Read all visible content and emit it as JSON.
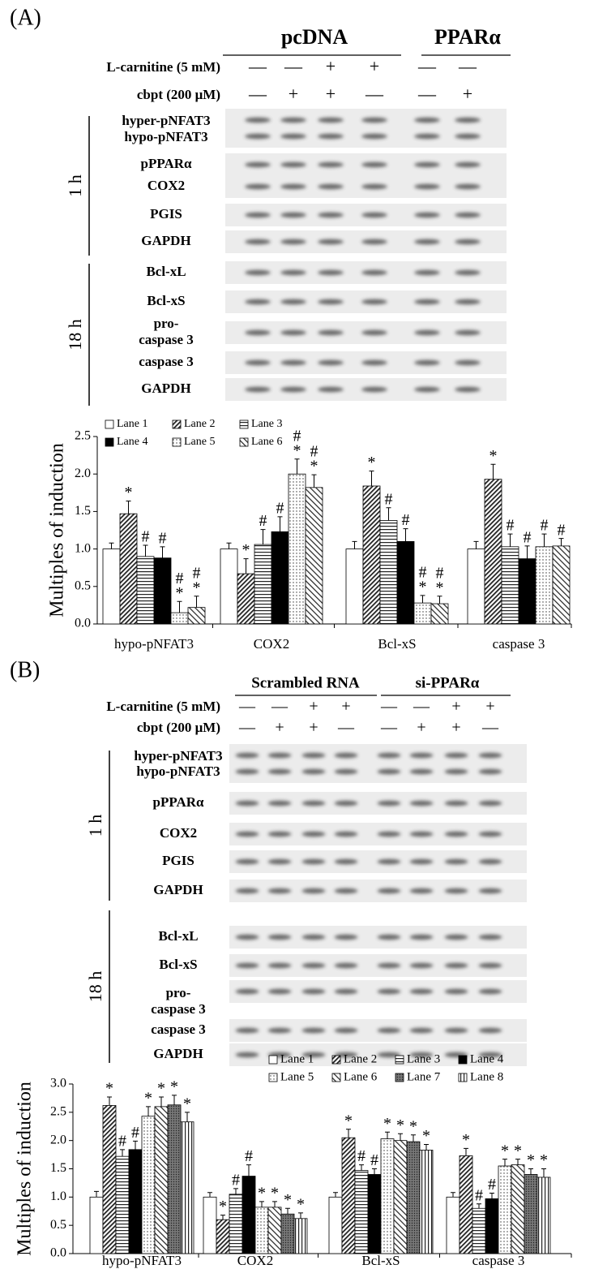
{
  "panels": [
    {
      "label": "(A)",
      "groups": [
        {
          "label": "pcDNA"
        },
        {
          "label": "PPARα"
        }
      ],
      "treatments": [
        {
          "label": "L-carnitine (5 mM)",
          "signs": [
            "—",
            "—",
            "+",
            "+",
            "—",
            "—"
          ]
        },
        {
          "label": "cbpt (200 μM)",
          "signs": [
            "—",
            "+",
            "+",
            "—",
            "—",
            "+"
          ]
        }
      ],
      "time_points": [
        {
          "label": "1 h",
          "rows": [
            {
              "labels": [
                "hyper-pNFAT3",
                "hypo-pNFAT3"
              ]
            },
            {
              "labels": [
                "pPPARα"
              ]
            },
            {
              "labels": [
                "COX2"
              ]
            },
            {
              "labels": [
                "PGIS"
              ]
            },
            {
              "labels": [
                "GAPDH"
              ]
            }
          ]
        },
        {
          "label": "18 h",
          "rows": [
            {
              "labels": [
                "Bcl-xL"
              ]
            },
            {
              "labels": [
                "Bcl-xS"
              ]
            },
            {
              "labels": [
                "pro-",
                "caspase 3"
              ]
            },
            {
              "labels": [
                "caspase 3"
              ]
            },
            {
              "labels": [
                "GAPDH"
              ]
            }
          ]
        }
      ]
    },
    {
      "label": "(B)",
      "groups": [
        {
          "label": "Scrambled RNA"
        },
        {
          "label": "si-PPARα"
        }
      ],
      "treatments": [
        {
          "label": "L-carnitine (5 mM)",
          "signs": [
            "—",
            "—",
            "+",
            "+",
            "—",
            "—",
            "+",
            "+"
          ]
        },
        {
          "label": "cbpt (200 μM)",
          "signs": [
            "—",
            "+",
            "+",
            "—",
            "—",
            "+",
            "+",
            "—"
          ]
        }
      ],
      "time_points": [
        {
          "label": "1 h",
          "rows": [
            {
              "labels": [
                "hyper-pNFAT3",
                "hypo-pNFAT3"
              ]
            },
            {
              "labels": [
                "pPPARα"
              ]
            },
            {
              "labels": [
                "COX2"
              ]
            },
            {
              "labels": [
                "PGIS"
              ]
            },
            {
              "labels": [
                "GAPDH"
              ]
            }
          ]
        },
        {
          "label": "18 h",
          "rows": [
            {
              "labels": [
                "Bcl-xL"
              ]
            },
            {
              "labels": [
                "Bcl-xS"
              ]
            },
            {
              "labels": [
                "pro-",
                "caspase 3"
              ]
            },
            {
              "labels": [
                "caspase 3"
              ]
            },
            {
              "labels": [
                "GAPDH"
              ]
            }
          ]
        }
      ]
    }
  ],
  "chart_data": [
    {
      "type": "bar",
      "y_label": "Multiples of induction",
      "categories": [
        "hypo-pNFAT3",
        "COX2",
        "Bcl-xS",
        "caspase 3"
      ],
      "ylim": [
        0,
        2.5
      ],
      "yticks": [
        {
          "value": 0,
          "label": "0.0"
        },
        0.5,
        {
          "value": 1,
          "label": "1.0"
        },
        1.5,
        {
          "value": 2,
          "label": "2.0"
        },
        2.5
      ],
      "series": [
        {
          "name": "Lane 1",
          "color": "#ffffff",
          "pattern": "none",
          "values": [
            1.0,
            1.0,
            1.0,
            1.0
          ],
          "errors": [
            0.08,
            0.08,
            0.1,
            0.1
          ],
          "annotations": [
            null,
            null,
            null,
            null
          ]
        },
        {
          "name": "Lane 2",
          "color": "#ffffff",
          "pattern": "dense-diagonal",
          "values": [
            1.47,
            0.67,
            1.84,
            1.93
          ],
          "errors": [
            0.17,
            0.2,
            0.2,
            0.2
          ],
          "annotations": [
            [
              "*"
            ],
            [
              "*"
            ],
            [
              "*"
            ],
            [
              "*"
            ]
          ]
        },
        {
          "name": "Lane 3",
          "color": "#ffffff",
          "pattern": "horizontal",
          "values": [
            0.9,
            1.06,
            1.38,
            1.03
          ],
          "errors": [
            0.15,
            0.2,
            0.17,
            0.17
          ],
          "annotations": [
            [
              "#"
            ],
            [
              "#"
            ],
            [
              "#"
            ],
            [
              "#"
            ]
          ]
        },
        {
          "name": "Lane 4",
          "color": "#000000",
          "pattern": "none",
          "values": [
            0.88,
            1.23,
            1.1,
            0.87
          ],
          "errors": [
            0.15,
            0.2,
            0.17,
            0.17
          ],
          "annotations": [
            [
              "#"
            ],
            [
              "#"
            ],
            [
              "#"
            ],
            [
              "#"
            ]
          ]
        },
        {
          "name": "Lane 5",
          "color": "#ffffff",
          "pattern": "dots",
          "values": [
            0.15,
            2.0,
            0.28,
            1.03
          ],
          "errors": [
            0.15,
            0.2,
            0.1,
            0.17
          ],
          "annotations": [
            [
              "#",
              "*"
            ],
            [
              "#",
              "*"
            ],
            [
              "#",
              "*"
            ],
            [
              "#"
            ]
          ]
        },
        {
          "name": "Lane 6",
          "color": "#ffffff",
          "pattern": "sparse-diagonal",
          "values": [
            0.22,
            1.82,
            0.27,
            1.04
          ],
          "errors": [
            0.15,
            0.17,
            0.1,
            0.1
          ],
          "annotations": [
            [
              "#",
              "*"
            ],
            [
              "#",
              "*"
            ],
            [
              "#",
              "*"
            ],
            [
              "#"
            ]
          ]
        }
      ]
    },
    {
      "type": "bar",
      "y_label": "Multiples of induction",
      "categories": [
        "hypo-pNFAT3",
        "COX2",
        "Bcl-xS",
        "caspase 3"
      ],
      "ylim": [
        0,
        3
      ],
      "yticks": [
        {
          "value": 0,
          "label": "0.0"
        },
        0.5,
        {
          "value": 1,
          "label": "1.0"
        },
        1.5,
        {
          "value": 2,
          "label": "2.0"
        },
        2.5,
        {
          "value": 3,
          "label": "3.0"
        }
      ],
      "series": [
        {
          "name": "Lane 1",
          "color": "#ffffff",
          "pattern": "none",
          "values": [
            1.0,
            1.0,
            1.0,
            1.0
          ],
          "errors": [
            0.1,
            0.08,
            0.08,
            0.08
          ],
          "annotations": [
            null,
            null,
            null,
            null
          ]
        },
        {
          "name": "Lane 2",
          "color": "#ffffff",
          "pattern": "dense-diagonal",
          "values": [
            2.62,
            0.6,
            2.05,
            1.73
          ],
          "errors": [
            0.15,
            0.08,
            0.15,
            0.13
          ],
          "annotations": [
            [
              "*"
            ],
            [
              "*"
            ],
            [
              "*"
            ],
            [
              "*"
            ]
          ]
        },
        {
          "name": "Lane 3",
          "color": "#ffffff",
          "pattern": "horizontal",
          "values": [
            1.72,
            1.05,
            1.47,
            0.8
          ],
          "errors": [
            0.12,
            0.1,
            0.1,
            0.08
          ],
          "annotations": [
            [
              "#"
            ],
            [
              "#"
            ],
            [
              "#"
            ],
            [
              "#"
            ]
          ]
        },
        {
          "name": "Lane 4",
          "color": "#000000",
          "pattern": "none",
          "values": [
            1.84,
            1.37,
            1.4,
            0.97
          ],
          "errors": [
            0.15,
            0.2,
            0.1,
            0.1
          ],
          "annotations": [
            [
              "#"
            ],
            [
              "#"
            ],
            [
              "#"
            ],
            [
              "#"
            ]
          ]
        },
        {
          "name": "Lane 5",
          "color": "#ffffff",
          "pattern": "dots",
          "values": [
            2.43,
            0.82,
            2.03,
            1.55
          ],
          "errors": [
            0.17,
            0.1,
            0.12,
            0.12
          ],
          "annotations": [
            [
              "*"
            ],
            [
              "*"
            ],
            [
              "*"
            ],
            [
              "*"
            ]
          ]
        },
        {
          "name": "Lane 6",
          "color": "#ffffff",
          "pattern": "sparse-diagonal",
          "values": [
            2.6,
            0.82,
            2.0,
            1.57
          ],
          "errors": [
            0.17,
            0.1,
            0.12,
            0.1
          ],
          "annotations": [
            [
              "*"
            ],
            [
              "*"
            ],
            [
              "*"
            ],
            [
              "*"
            ]
          ]
        },
        {
          "name": "Lane 7",
          "color": "#ffffff",
          "pattern": "dark-dots",
          "values": [
            2.63,
            0.7,
            1.98,
            1.4
          ],
          "errors": [
            0.17,
            0.1,
            0.12,
            0.1
          ],
          "annotations": [
            [
              "*"
            ],
            [
              "*"
            ],
            [
              "*"
            ],
            [
              "*"
            ]
          ]
        },
        {
          "name": "Lane 8",
          "color": "#ffffff",
          "pattern": "vertical",
          "values": [
            2.33,
            0.62,
            1.83,
            1.35
          ],
          "errors": [
            0.17,
            0.1,
            0.1,
            0.15
          ],
          "annotations": [
            [
              "*"
            ],
            [
              "*"
            ],
            [
              "*"
            ],
            [
              "*"
            ]
          ]
        }
      ]
    }
  ]
}
